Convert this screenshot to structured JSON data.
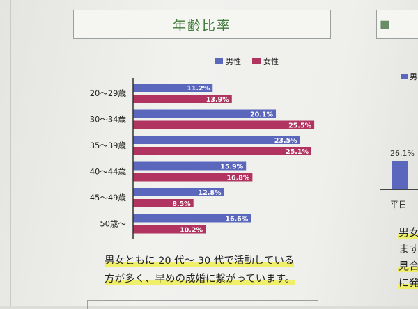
{
  "header": {
    "title": "年齢比率"
  },
  "side": {
    "legend_label": "男",
    "bar_value": "26.1%",
    "category": "平日",
    "text_lines": [
      "男女",
      "ます",
      "見合",
      "に発"
    ]
  },
  "caption": {
    "line1": "男女ともに 20 代〜 30 代で活動している",
    "line2": "方が多く、早めの成婚に繋がっています。"
  },
  "colors": {
    "male": "#5a67bc",
    "female": "#b0345f",
    "title": "#3e7a3a",
    "highlight": "#f0ef6a"
  },
  "chart_data": {
    "type": "bar",
    "orientation": "horizontal",
    "title": "年齢比率",
    "categories": [
      "20〜29歳",
      "30〜34歳",
      "35〜39歳",
      "40〜44歳",
      "45〜49歳",
      "50歳〜"
    ],
    "series": [
      {
        "name": "男性",
        "values": [
          11.2,
          20.1,
          23.5,
          15.9,
          12.8,
          16.6
        ],
        "labels": [
          "11.2%",
          "20.1%",
          "23.5%",
          "15.9%",
          "12.8%",
          "16.6%"
        ]
      },
      {
        "name": "女性",
        "values": [
          13.9,
          25.5,
          25.1,
          16.8,
          8.5,
          10.2
        ],
        "labels": [
          "13.9%",
          "25.5%",
          "25.1%",
          "16.8%",
          "8.5%",
          "10.2%"
        ]
      }
    ],
    "xlim": [
      0,
      28
    ],
    "legend": "top",
    "grid": false,
    "unit": "%"
  }
}
